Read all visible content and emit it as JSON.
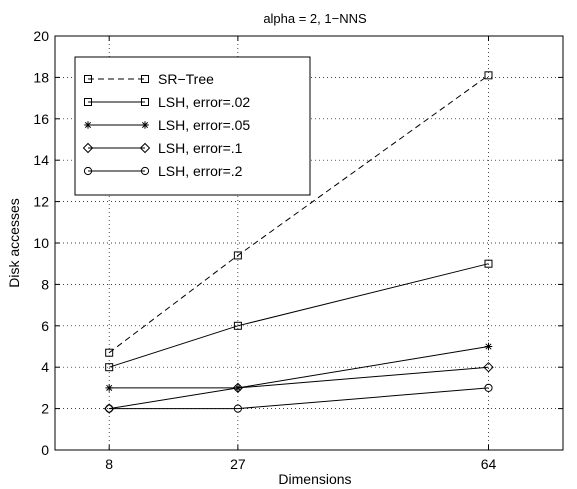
{
  "chart_data": {
    "type": "line",
    "title": "alpha = 2, 1−NNS",
    "xlabel": "Dimensions",
    "ylabel": "Disk accesses",
    "x": [
      8,
      27,
      64
    ],
    "xlim": [
      0,
      75
    ],
    "ylim": [
      0,
      20
    ],
    "yticks": [
      0,
      2,
      4,
      6,
      8,
      10,
      12,
      14,
      16,
      18,
      20
    ],
    "grid": true,
    "legend_position": "top-left",
    "series": [
      {
        "name": "SR−Tree",
        "values": [
          4.7,
          9.4,
          18.1
        ],
        "marker": "square",
        "dash": "dashed",
        "color": "#000000"
      },
      {
        "name": "LSH, error=.02",
        "values": [
          4.0,
          6.0,
          9.0
        ],
        "marker": "square",
        "dash": "solid",
        "color": "#000000"
      },
      {
        "name": "LSH, error=.05",
        "values": [
          3.0,
          3.0,
          5.0
        ],
        "marker": "star",
        "dash": "solid",
        "color": "#000000"
      },
      {
        "name": "LSH, error=.1",
        "values": [
          2.0,
          3.0,
          4.0
        ],
        "marker": "diamond",
        "dash": "solid",
        "color": "#000000"
      },
      {
        "name": "LSH, error=.2",
        "values": [
          2.0,
          2.0,
          3.0
        ],
        "marker": "circle",
        "dash": "solid",
        "color": "#000000"
      }
    ]
  }
}
